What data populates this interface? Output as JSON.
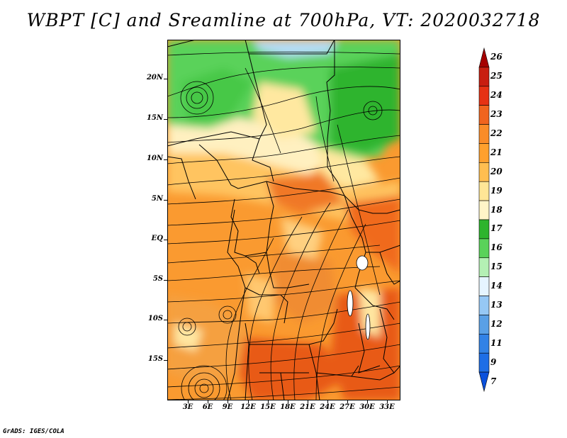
{
  "title": "WBPT [C] and Sreamline at 700hPa, VT: 2020032718",
  "credit": "GrADS: IGES/COLA",
  "map": {
    "lat_labels": [
      "20N",
      "15N",
      "10N",
      "5N",
      "EQ",
      "5S",
      "10S",
      "15S"
    ],
    "lon_labels": [
      "3E",
      "6E",
      "9E",
      "12E",
      "15E",
      "18E",
      "21E",
      "24E",
      "27E",
      "30E",
      "33E"
    ],
    "lat_range": [
      -20,
      25
    ],
    "lon_range": [
      0,
      35
    ]
  },
  "colorbar": {
    "labels": [
      "26",
      "25",
      "24",
      "23",
      "22",
      "21",
      "20",
      "19",
      "18",
      "17",
      "16",
      "15",
      "14",
      "13",
      "12",
      "11",
      "9",
      "7"
    ],
    "colors": [
      "#a50000",
      "#c81e10",
      "#e63214",
      "#f0641e",
      "#fa8c28",
      "#ffa02d",
      "#ffbe50",
      "#ffe696",
      "#fff5c8",
      "#2db42d",
      "#5ad25a",
      "#b4f0b4",
      "#e6f5ff",
      "#96c8f5",
      "#5aa0e6",
      "#3282e6",
      "#1e6ee6",
      "#0a50dc"
    ]
  }
}
